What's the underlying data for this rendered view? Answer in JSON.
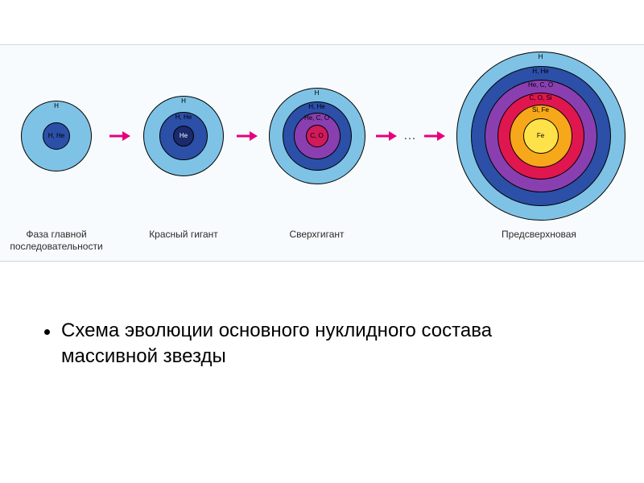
{
  "colors": {
    "band_bg": "#f8fbfd",
    "h_outer": "#7ec3e6",
    "h_he": "#2c4fa8",
    "he_core": "#1a2a6c",
    "he_c_o": "#8a3fb0",
    "c_o": "#d11a5a",
    "c_o_si": "#e0164f",
    "si_fe": "#f7a71a",
    "fe_core": "#ffe24a",
    "arrow": "#e6007e",
    "ring_border": "#000000"
  },
  "arrow": {
    "width": 26,
    "height": 12
  },
  "stars": [
    {
      "id": "main-sequence",
      "caption": "Фаза главной\nпоследовательности",
      "wrap_width": 120,
      "caption_width": 130,
      "diameter": 88,
      "rings": [
        {
          "d": 88,
          "color_key": "h_outer",
          "label": "H",
          "label_at": "top"
        },
        {
          "d": 34,
          "color_key": "h_he",
          "label": "H, He",
          "label_at": "center",
          "text_light": false
        }
      ]
    },
    {
      "id": "red-giant",
      "caption": "Красный гигант",
      "wrap_width": 120,
      "caption_width": 110,
      "diameter": 100,
      "rings": [
        {
          "d": 100,
          "color_key": "h_outer",
          "label": "H",
          "label_at": "top"
        },
        {
          "d": 60,
          "color_key": "h_he",
          "label": "H, He",
          "label_at": "top",
          "text_light": false
        },
        {
          "d": 26,
          "color_key": "he_core",
          "label": "He",
          "label_at": "center",
          "text_light": true
        }
      ]
    },
    {
      "id": "supergiant",
      "caption": "Сверхгигант",
      "wrap_width": 135,
      "caption_width": 120,
      "diameter": 120,
      "rings": [
        {
          "d": 120,
          "color_key": "h_outer",
          "label": "H",
          "label_at": "top"
        },
        {
          "d": 86,
          "color_key": "h_he",
          "label": "H, He",
          "label_at": "top",
          "text_light": false
        },
        {
          "d": 58,
          "color_key": "he_c_o",
          "label": "He, C, O",
          "label_at": "top",
          "text_light": false
        },
        {
          "d": 28,
          "color_key": "c_o",
          "label": "C, O",
          "label_at": "center",
          "text_light": false
        }
      ]
    },
    {
      "id": "presupernova",
      "caption": "Предсверхновая",
      "wrap_width": 225,
      "caption_width": 220,
      "diameter": 210,
      "rings": [
        {
          "d": 210,
          "color_key": "h_outer",
          "label": "H",
          "label_at": "top"
        },
        {
          "d": 174,
          "color_key": "h_he",
          "label": "H, He",
          "label_at": "top",
          "text_light": false
        },
        {
          "d": 140,
          "color_key": "he_c_o",
          "label": "He, C, O",
          "label_at": "top",
          "text_light": false
        },
        {
          "d": 108,
          "color_key": "c_o_si",
          "label": "C, O, Si",
          "label_at": "top",
          "text_light": false
        },
        {
          "d": 78,
          "color_key": "si_fe",
          "label": "Si, Fe",
          "label_at": "top",
          "text_light": false
        },
        {
          "d": 44,
          "color_key": "fe_core",
          "label": "Fe",
          "label_at": "center",
          "text_light": false
        }
      ]
    }
  ],
  "arrows_after": [
    0,
    1,
    2
  ],
  "ellipsis_after": 2,
  "ellipsis_text": "…",
  "caption_block": "Схема эволюции основного нуклидного состава массивной звезды",
  "layout": {
    "star_left_pad": 10,
    "arrow_gap": 6,
    "last_gap": 30
  }
}
